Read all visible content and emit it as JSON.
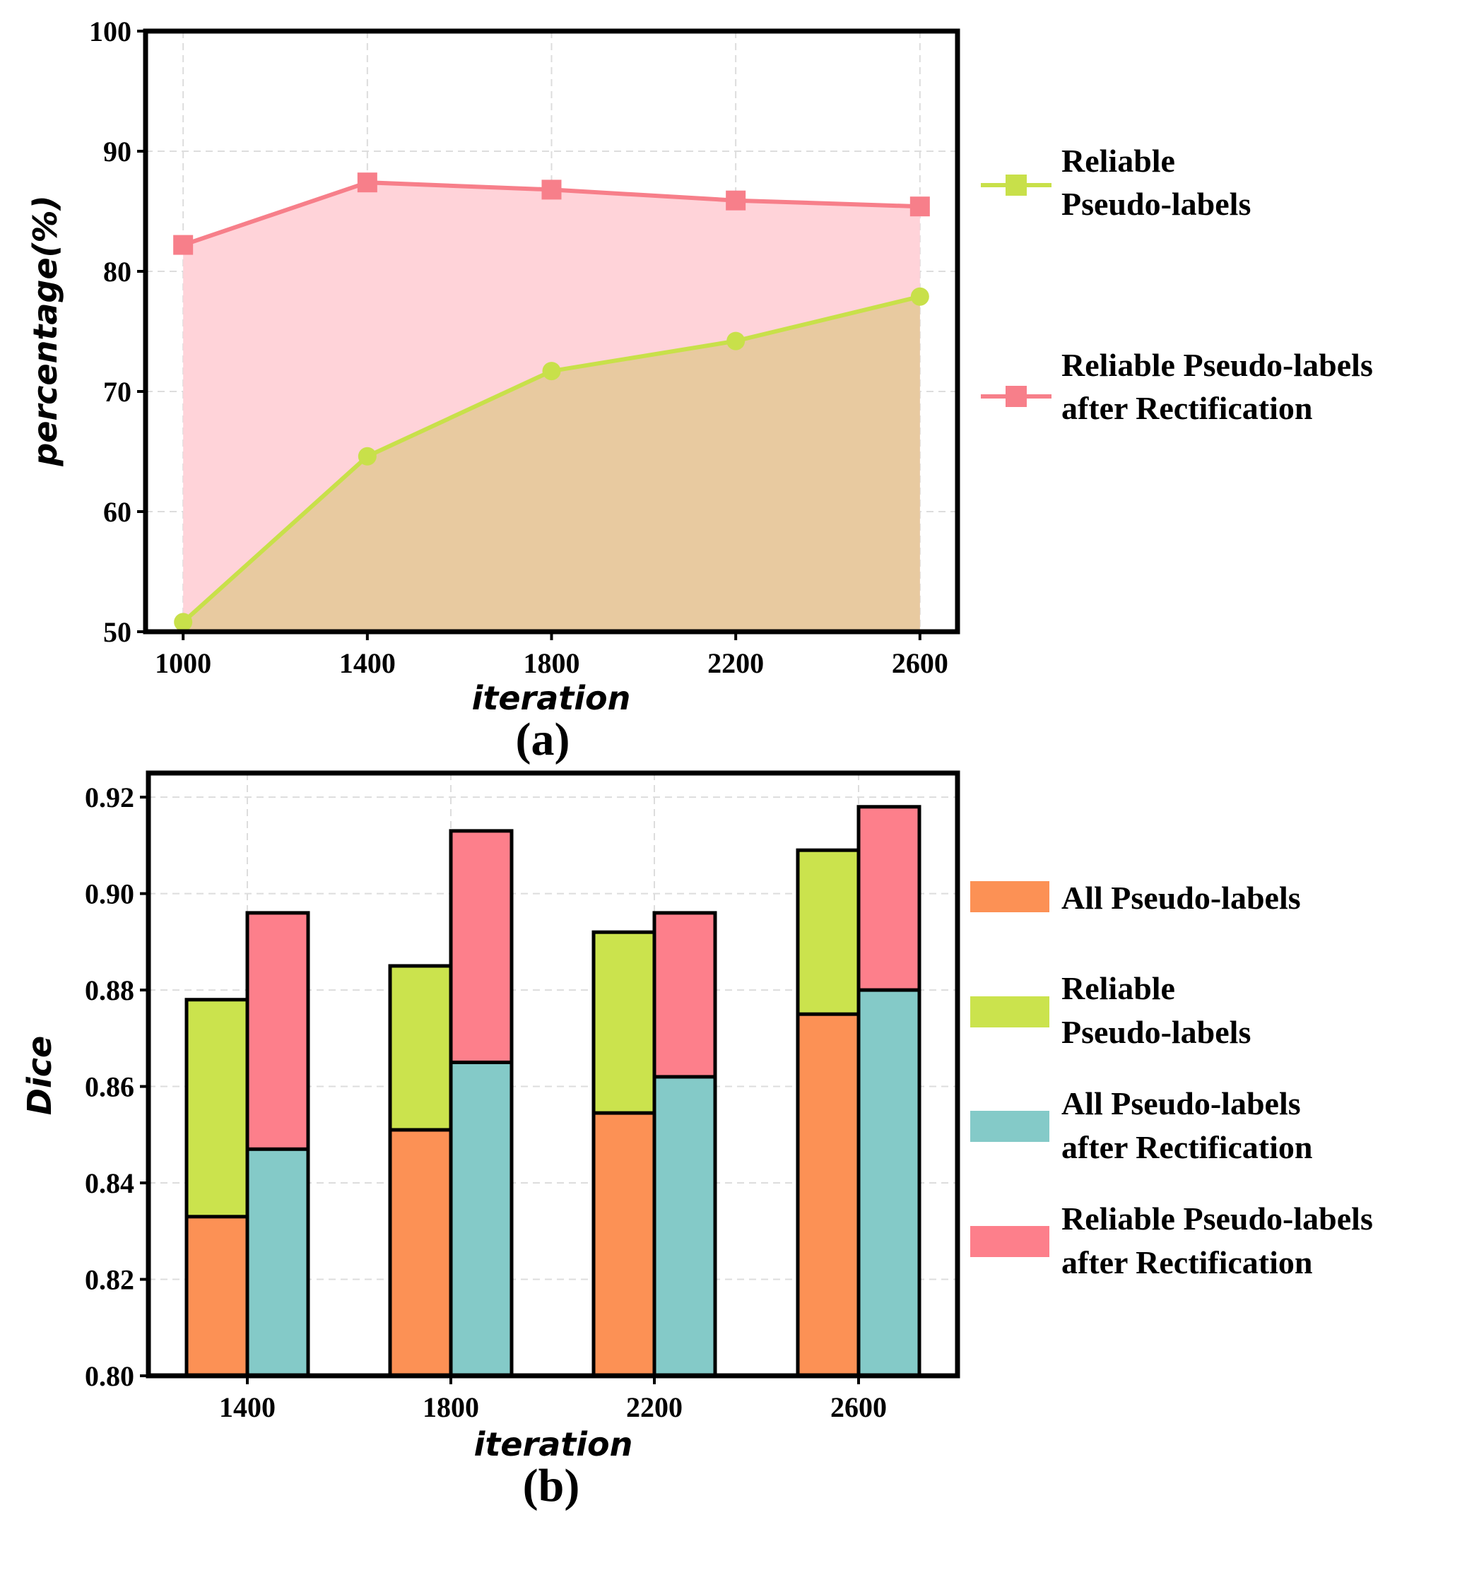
{
  "chart_data": [
    {
      "type": "line",
      "caption": "(a)",
      "xlabel": "iteration",
      "ylabel": "percentage(%)",
      "x": [
        1000,
        1400,
        1800,
        2200,
        2600
      ],
      "xticks": [
        "1000",
        "1400",
        "1800",
        "2200",
        "2600"
      ],
      "ylim": [
        50,
        100
      ],
      "yticks": [
        "50",
        "60",
        "70",
        "80",
        "90",
        "100"
      ],
      "grid": true,
      "filled_area": true,
      "legend_position": "right",
      "series": [
        {
          "name": "Reliable Pseudo-labels",
          "legend_lines": [
            "Reliable",
            "Pseudo-labels"
          ],
          "marker": "circle",
          "color": "#c8e04a",
          "fill": "#e8caa0",
          "values": [
            50.8,
            64.6,
            71.7,
            74.2,
            77.9
          ]
        },
        {
          "name": "Reliable Pseudo-labels after Rectification",
          "legend_lines": [
            "Reliable Pseudo-labels",
            "after  Rectification"
          ],
          "marker": "square",
          "color": "#f77f8a",
          "fill": "#ffd3d9",
          "values": [
            82.2,
            87.4,
            86.8,
            85.9,
            85.4
          ]
        }
      ]
    },
    {
      "type": "bar",
      "caption": "(b)",
      "xlabel": "iteration",
      "ylabel": "Dice",
      "categories": [
        "1400",
        "1800",
        "2200",
        "2600"
      ],
      "ylim": [
        0.8,
        0.925
      ],
      "yticks": [
        "0.80",
        "0.82",
        "0.84",
        "0.86",
        "0.88",
        "0.90",
        "0.92"
      ],
      "grid": true,
      "legend_position": "right",
      "series": [
        {
          "name": "All Pseudo-labels",
          "legend_lines": [
            "All Pseudo-labels"
          ],
          "color": "#fc9155",
          "values": [
            0.833,
            0.851,
            0.8545,
            0.875
          ]
        },
        {
          "name": "Reliable Pseudo-labels",
          "legend_lines": [
            "Reliable",
            "Pseudo-labels"
          ],
          "color": "#cbe34d",
          "values": [
            0.878,
            0.885,
            0.892,
            0.909
          ]
        },
        {
          "name": "All Pseudo-labels after Rectification",
          "legend_lines": [
            "All Pseudo-labels",
            "after Rectification"
          ],
          "color": "#84cac8",
          "values": [
            0.847,
            0.865,
            0.862,
            0.88
          ]
        },
        {
          "name": "Reliable Pseudo-labels after Rectification",
          "legend_lines": [
            "Reliable Pseudo-labels",
            "after  Rectification"
          ],
          "color": "#fd7f8b",
          "values": [
            0.896,
            0.913,
            0.896,
            0.918
          ]
        }
      ]
    }
  ]
}
